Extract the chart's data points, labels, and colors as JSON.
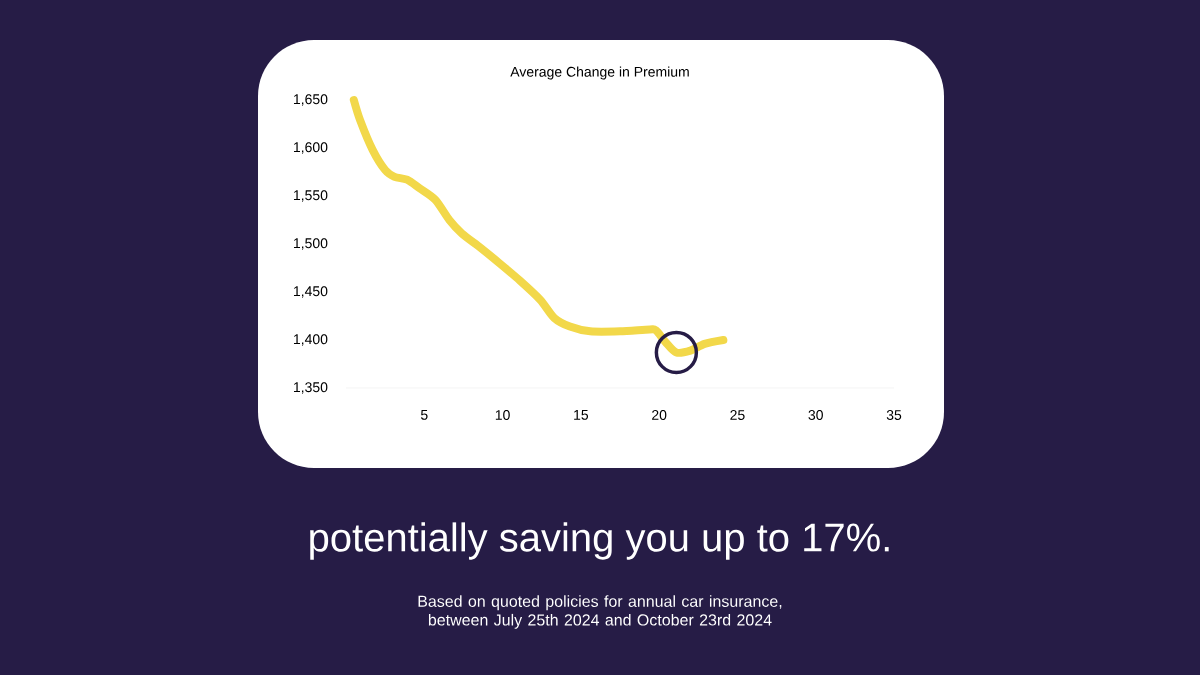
{
  "chart_data": {
    "type": "line",
    "title": "Average Change in Premium",
    "subtitle": "potentially saving you up to 17%.",
    "annotations": [
      "Based on quoted policies for annual car insurance, between July 25th 2024 and October 23rd 2024"
    ],
    "x": [
      0.5,
      0.9,
      1.7,
      2.5,
      3.1,
      3.9,
      4.7,
      5.7,
      6.6,
      7.4,
      8.6,
      9.8,
      11.1,
      12.4,
      13.3,
      14.3,
      15.6,
      17.5,
      19.4,
      19.8,
      20.4,
      21.1,
      22.0,
      22.9,
      24.1
    ],
    "series": [
      {
        "color": "#f2d84a",
        "values": [
          1650,
          1629,
          1598,
          1577,
          1570,
          1567,
          1558,
          1546,
          1525,
          1511,
          1496,
          1480,
          1462,
          1442,
          1423,
          1414,
          1409,
          1409,
          1411,
          1410,
          1398,
          1387,
          1389,
          1396,
          1400
        ]
      }
    ],
    "xlim": [
      0,
      35
    ],
    "ylim": [
      1350,
      1650
    ],
    "xticks": [
      5,
      10,
      15,
      20,
      25,
      30,
      35
    ],
    "yticks": [
      {
        "value": 1350,
        "label": "1,350"
      },
      {
        "value": 1400,
        "label": "1,400"
      },
      {
        "value": 1450,
        "label": "1,450"
      },
      {
        "value": 1500,
        "label": "1,500"
      },
      {
        "value": 1550,
        "label": "1,550"
      },
      {
        "value": 1600,
        "label": "1,600"
      },
      {
        "value": 1650,
        "label": "1,650"
      }
    ]
  }
}
